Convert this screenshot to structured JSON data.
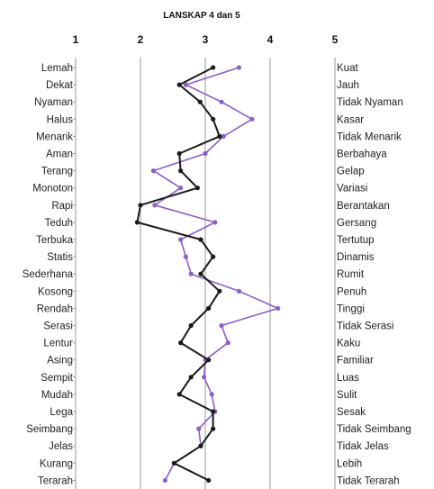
{
  "chart_data": {
    "type": "line",
    "title": "LANSKAP 4 dan 5",
    "x_ticks": [
      "1",
      "2",
      "3",
      "4",
      "5"
    ],
    "xlim": [
      1,
      5
    ],
    "grid": "vertical",
    "left_labels": [
      "Lemah",
      "Dekat",
      "Nyaman",
      "Halus",
      "Menarik",
      "Aman",
      "Terang",
      "Monoton",
      "Rapi",
      "Teduh",
      "Terbuka",
      "Statis",
      "Sederhana",
      "Kosong",
      "Rendah",
      "Serasi",
      "Lentur",
      "Asing",
      "Sempit",
      "Mudah",
      "Lega",
      "Seimbang",
      "Jelas",
      "Kurang",
      "Terarah"
    ],
    "right_labels": [
      "Kuat",
      "Jauh",
      "Tidak Nyaman",
      "Kasar",
      "Tidak Menarik",
      "Berbahaya",
      "Gelap",
      "Variasi",
      "Berantakan",
      "Gersang",
      "Tertutup",
      "Dinamis",
      "Rumit",
      "Penuh",
      "Tinggi",
      "Tidak Serasi",
      "Kaku",
      "Familiar",
      "Luas",
      "Sulit",
      "Sesak",
      "Tidak Seimbang",
      "Tidak Jelas",
      "Lebih",
      "Tidak Terarah"
    ],
    "series": [
      {
        "color": "#1a1a1a",
        "values": [
          3.12,
          2.6,
          2.92,
          3.12,
          3.22,
          2.6,
          2.62,
          2.88,
          2.0,
          1.95,
          2.93,
          3.12,
          2.93,
          3.22,
          3.05,
          2.78,
          2.62,
          3.05,
          2.78,
          2.6,
          3.12,
          3.12,
          2.93,
          2.52,
          3.05
        ]
      },
      {
        "color": "#8b5fc8",
        "values": [
          3.52,
          2.7,
          3.25,
          3.72,
          3.28,
          3.0,
          2.2,
          2.62,
          2.22,
          3.15,
          2.62,
          2.7,
          2.78,
          3.52,
          4.12,
          3.25,
          3.35,
          3.0,
          2.98,
          3.1,
          3.15,
          2.9,
          2.93,
          2.52,
          2.38
        ]
      }
    ]
  }
}
